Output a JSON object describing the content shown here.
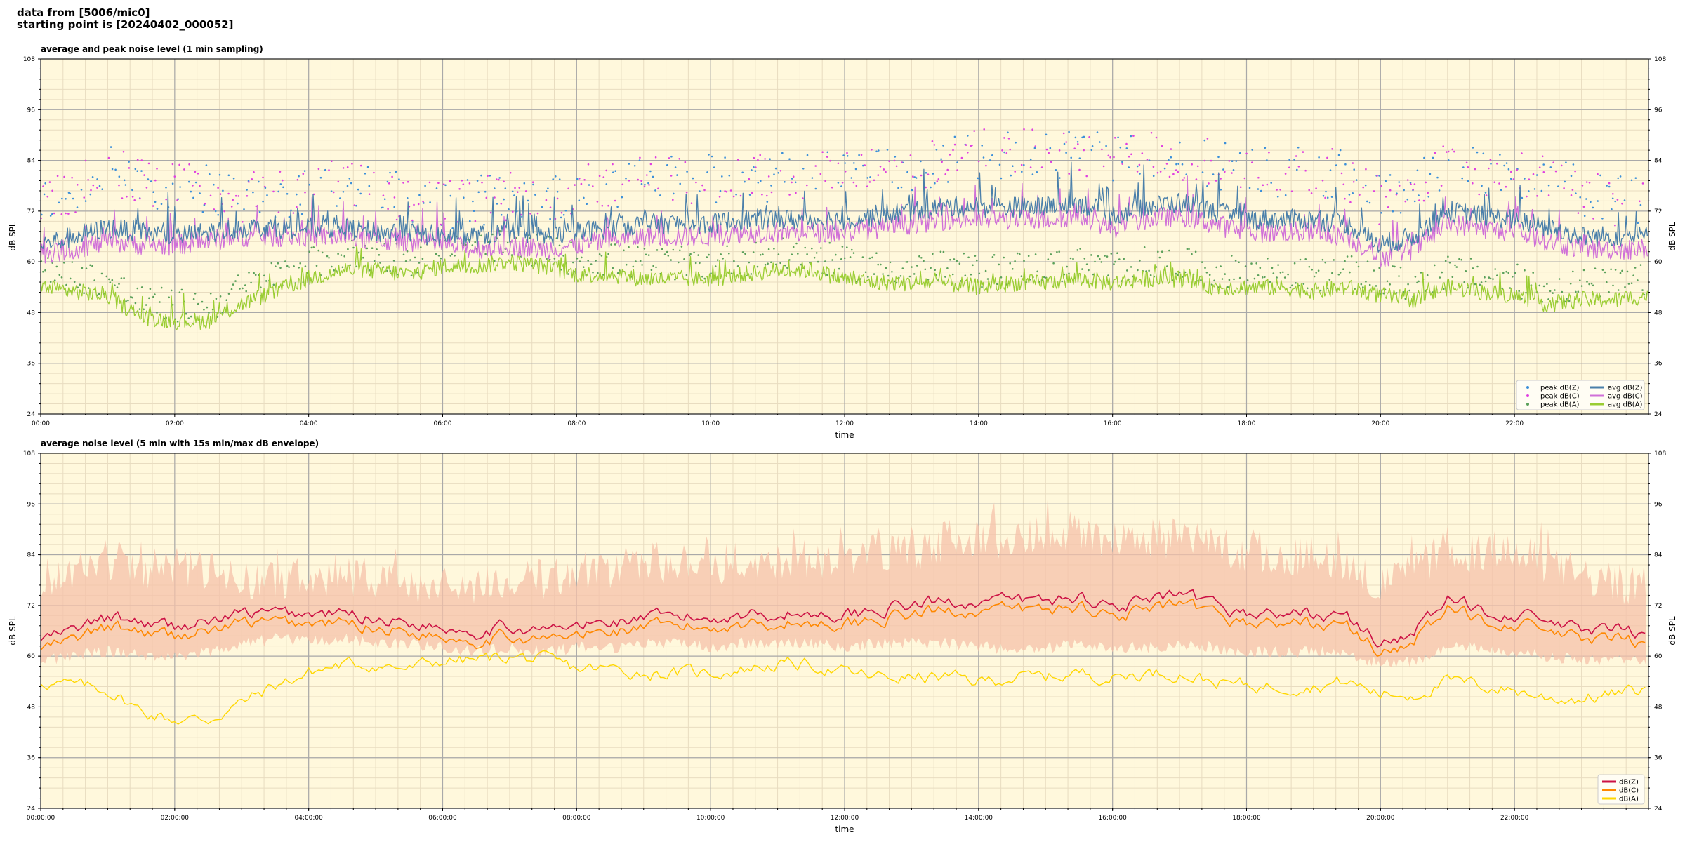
{
  "header": {
    "line1": "data from [5006/mic0]",
    "line2": "starting point is [20240402_000052]"
  },
  "colors": {
    "background": "#fff8dc",
    "grid_major": "#a9a9a9",
    "grid_minor": "#e8dcc0",
    "peak_z": "#3b8fd9",
    "peak_c": "#e040e0",
    "peak_a": "#5aa05a",
    "avg_z": "#4a7faa",
    "avg_c": "#d070d8",
    "avg_a": "#9acd32",
    "env": "#f5c2aa",
    "db_z": "#cc1144",
    "db_c": "#ff8800",
    "db_a": "#ffd700"
  },
  "chart_data": [
    {
      "type": "line",
      "title": "average and peak noise level (1 min sampling)",
      "xlabel": "time",
      "ylabel": "dB SPL",
      "xlim_hours": [
        0,
        24
      ],
      "ylim": [
        24,
        108
      ],
      "yticks": [
        24,
        36,
        48,
        60,
        72,
        84,
        96,
        108
      ],
      "xtick_labels": [
        "00:00",
        "02:00",
        "04:00",
        "06:00",
        "08:00",
        "10:00",
        "12:00",
        "14:00",
        "16:00",
        "18:00",
        "20:00",
        "22:00"
      ],
      "grid": true,
      "legend_position": "bottom-right",
      "legend": [
        "peak dB(Z)",
        "peak dB(C)",
        "peak dB(A)",
        "avg dB(Z)",
        "avg dB(C)",
        "avg dB(A)"
      ],
      "series_profiles": {
        "hours": [
          0,
          0.5,
          1,
          1.5,
          2,
          2.5,
          3,
          3.5,
          4,
          4.5,
          5,
          5.5,
          6,
          6.5,
          7,
          7.5,
          8,
          8.5,
          9,
          9.5,
          10,
          10.5,
          11,
          11.5,
          12,
          12.5,
          13,
          13.5,
          14,
          14.5,
          15,
          15.5,
          16,
          16.5,
          17,
          17.5,
          18,
          18.5,
          19,
          19.5,
          20,
          20.5,
          21,
          21.5,
          22,
          22.5,
          23,
          23.5,
          24
        ],
        "avg_z": [
          64,
          66,
          68,
          67,
          66,
          67,
          68,
          68,
          68,
          68,
          67,
          67,
          66,
          66,
          67,
          66,
          67,
          68,
          69,
          69,
          69,
          70,
          70,
          70,
          70,
          71,
          72,
          73,
          73,
          73,
          73,
          74,
          71,
          73,
          74,
          72,
          70,
          70,
          70,
          69,
          64,
          66,
          72,
          71,
          70,
          68,
          66,
          66,
          66
        ],
        "avg_c": [
          62,
          63,
          65,
          64,
          64,
          65,
          66,
          66,
          66,
          66,
          65,
          65,
          64,
          63,
          64,
          63,
          64,
          65,
          66,
          66,
          66,
          67,
          67,
          67,
          67,
          68,
          69,
          70,
          70,
          70,
          70,
          71,
          68,
          70,
          71,
          69,
          67,
          67,
          67,
          66,
          61,
          63,
          69,
          68,
          67,
          65,
          63,
          63,
          63
        ],
        "avg_a": [
          54,
          53,
          52,
          47,
          46,
          46,
          50,
          53,
          56,
          58,
          58,
          57,
          59,
          59,
          60,
          59,
          57,
          57,
          56,
          56,
          56,
          57,
          58,
          58,
          56,
          55,
          55,
          55,
          54,
          55,
          55,
          56,
          55,
          56,
          56,
          54,
          54,
          54,
          53,
          54,
          52,
          51,
          54,
          53,
          52,
          50,
          51,
          51,
          52
        ],
        "peak_z": [
          72,
          76,
          80,
          78,
          76,
          76,
          74,
          74,
          76,
          77,
          75,
          74,
          72,
          73,
          74,
          74,
          76,
          77,
          78,
          78,
          78,
          78,
          79,
          79,
          79,
          80,
          81,
          83,
          84,
          84,
          84,
          85,
          83,
          84,
          84,
          82,
          80,
          80,
          80,
          79,
          73,
          76,
          83,
          80,
          80,
          78,
          75,
          73,
          73
        ]
      }
    },
    {
      "type": "line",
      "title": "average noise level (5 min with 15s min/max dB envelope)",
      "xlabel": "time",
      "ylabel": "dB SPL",
      "xlim_hours": [
        0,
        24
      ],
      "ylim": [
        24,
        108
      ],
      "yticks": [
        24,
        36,
        48,
        60,
        72,
        84,
        96,
        108
      ],
      "xtick_labels": [
        "00:00:00",
        "02:00:00",
        "04:00:00",
        "06:00:00",
        "08:00:00",
        "10:00:00",
        "12:00:00",
        "14:00:00",
        "16:00:00",
        "18:00:00",
        "20:00:00",
        "22:00:00"
      ],
      "grid": true,
      "legend_position": "bottom-right",
      "legend": [
        "dB(Z)",
        "dB(C)",
        "dB(A)"
      ],
      "series_profiles": {
        "hours": [
          0,
          0.5,
          1,
          1.5,
          2,
          2.5,
          3,
          3.5,
          4,
          4.5,
          5,
          5.5,
          6,
          6.5,
          7,
          7.5,
          8,
          8.5,
          9,
          9.5,
          10,
          10.5,
          11,
          11.5,
          12,
          12.5,
          13,
          13.5,
          14,
          14.5,
          15,
          15.5,
          16,
          16.5,
          17,
          17.5,
          18,
          18.5,
          19,
          19.5,
          20,
          20.5,
          21,
          21.5,
          22,
          22.5,
          23,
          23.5,
          24
        ],
        "db_z": [
          64,
          66,
          69,
          68,
          67,
          68,
          70,
          70,
          70,
          70,
          69,
          68,
          67,
          66,
          67,
          66,
          67,
          68,
          69,
          69,
          69,
          70,
          70,
          70,
          70,
          71,
          72,
          73,
          73,
          73,
          73,
          74,
          72,
          73,
          74,
          72,
          70,
          70,
          70,
          69,
          63,
          66,
          73,
          71,
          70,
          68,
          66,
          66,
          65
        ],
        "db_c": [
          62,
          64,
          66,
          65,
          65,
          66,
          68,
          68,
          68,
          68,
          67,
          66,
          65,
          64,
          65,
          64,
          65,
          66,
          67,
          67,
          67,
          68,
          68,
          68,
          68,
          69,
          70,
          71,
          71,
          71,
          71,
          72,
          70,
          71,
          72,
          70,
          68,
          68,
          68,
          67,
          61,
          64,
          71,
          69,
          68,
          66,
          64,
          64,
          63
        ],
        "db_a": [
          54,
          53,
          52,
          47,
          45,
          45,
          49,
          53,
          56,
          58,
          58,
          57,
          59,
          59,
          60,
          59,
          57,
          57,
          56,
          56,
          56,
          57,
          58,
          58,
          56,
          55,
          55,
          55,
          54,
          55,
          55,
          56,
          55,
          56,
          56,
          54,
          53,
          53,
          53,
          54,
          51,
          51,
          54,
          53,
          52,
          50,
          50,
          51,
          52
        ],
        "env_max": [
          78,
          80,
          83,
          81,
          80,
          80,
          78,
          78,
          79,
          79,
          78,
          77,
          76,
          77,
          78,
          78,
          80,
          81,
          82,
          82,
          82,
          82,
          83,
          83,
          83,
          84,
          85,
          87,
          88,
          88,
          88,
          90,
          87,
          88,
          88,
          86,
          84,
          84,
          84,
          83,
          76,
          80,
          86,
          84,
          84,
          82,
          79,
          77,
          77
        ],
        "env_min": [
          59,
          60,
          61,
          60,
          60,
          61,
          63,
          64,
          64,
          64,
          63,
          63,
          62,
          61,
          62,
          61,
          62,
          62,
          63,
          63,
          62,
          63,
          63,
          63,
          62,
          63,
          63,
          63,
          62,
          62,
          62,
          63,
          62,
          62,
          63,
          62,
          61,
          61,
          61,
          61,
          58,
          59,
          62,
          62,
          61,
          60,
          59,
          59,
          59
        ]
      }
    }
  ]
}
